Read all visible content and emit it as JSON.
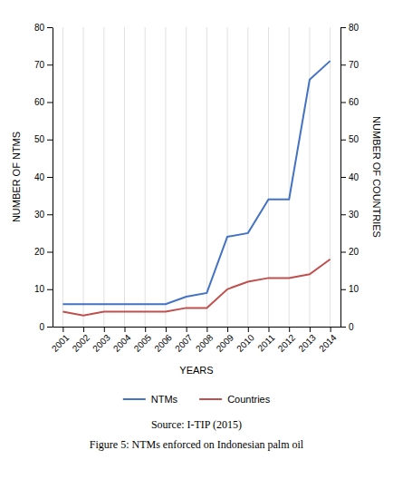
{
  "chart_data": {
    "type": "line",
    "xlabel": "YEARS",
    "ylabel": "NUMBER OF NTMS",
    "y2label": "NUMBER OF COUNTRIES",
    "annotations": [
      "Source: I-TIP (2015)",
      "Figure 5: NTMs enforced on Indonesian palm oil"
    ],
    "x": [
      2001,
      2002,
      2003,
      2004,
      2005,
      2006,
      2007,
      2008,
      2009,
      2010,
      2011,
      2012,
      2013,
      2014
    ],
    "series": [
      {
        "name": "NTMs",
        "color": "#4472C4",
        "values": [
          6,
          6,
          6,
          6,
          6,
          6,
          8,
          9,
          24,
          25,
          34,
          34,
          66,
          71
        ]
      },
      {
        "name": "Countries",
        "color": "#C0504D",
        "axis": "y2",
        "values": [
          4,
          3,
          4,
          4,
          4,
          4,
          5,
          5,
          10,
          12,
          13,
          13,
          14,
          18
        ]
      }
    ],
    "xlim": [
      2000.5,
      2014.5
    ],
    "xticks": [
      2001,
      2002,
      2003,
      2004,
      2005,
      2006,
      2007,
      2008,
      2009,
      2010,
      2011,
      2012,
      2013,
      2014
    ],
    "ylim": [
      0,
      80
    ],
    "yticks": [
      0,
      10,
      20,
      30,
      40,
      50,
      60,
      70,
      80
    ],
    "y2lim": [
      0,
      80
    ],
    "y2ticks": [
      0,
      10,
      20,
      30,
      40,
      50,
      60,
      70,
      80
    ],
    "grid": "x",
    "legend": "bottom"
  }
}
